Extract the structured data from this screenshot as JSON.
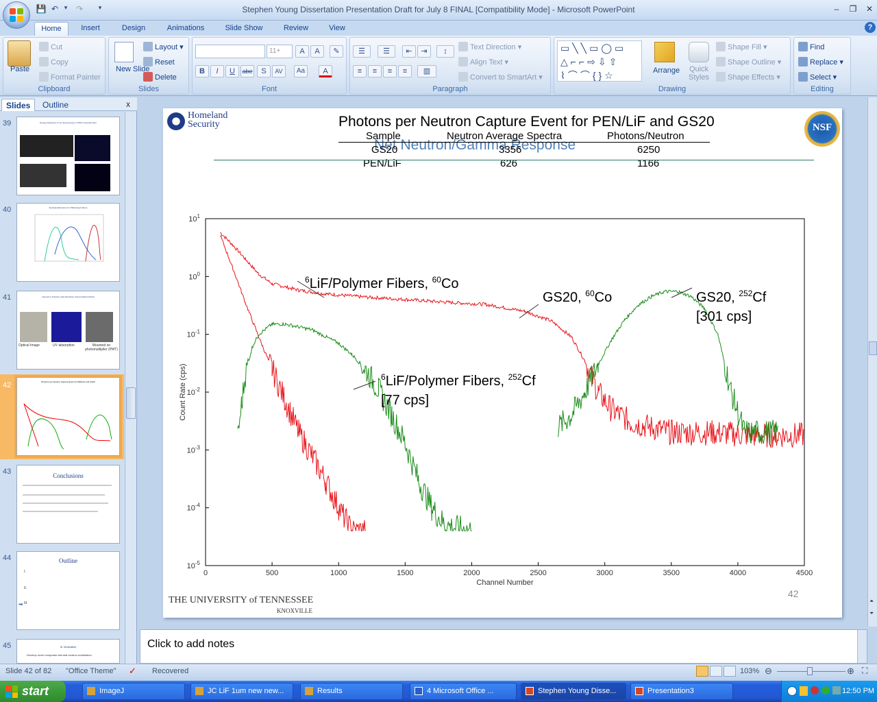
{
  "window": {
    "title": "Stephen Young Dissertation Presentation Draft for July 8 FINAL [Compatibility Mode] - Microsoft PowerPoint"
  },
  "qat": {
    "save_icon": "save-icon",
    "undo_icon": "undo-icon",
    "redo_icon": "redo-icon",
    "customize_icon": "customize-qat-icon"
  },
  "tabs": [
    "Home",
    "Insert",
    "Design",
    "Animations",
    "Slide Show",
    "Review",
    "View"
  ],
  "ribbon": {
    "clipboard": {
      "label": "Clipboard",
      "paste": "Paste",
      "cut": "Cut",
      "copy": "Copy",
      "format_painter": "Format Painter"
    },
    "slides": {
      "label": "Slides",
      "new_slide": "New Slide",
      "layout": "Layout",
      "reset": "Reset",
      "delete": "Delete"
    },
    "font": {
      "label": "Font",
      "size": "11+",
      "bold": "B",
      "italic": "I",
      "underline": "U",
      "strike": "abe",
      "shadow": "S",
      "spacing": "AV",
      "case": "Aa",
      "color": "A"
    },
    "paragraph": {
      "label": "Paragraph",
      "text_direction": "Text Direction",
      "align_text": "Align Text",
      "convert_smartart": "Convert to SmartArt"
    },
    "drawing": {
      "label": "Drawing",
      "arrange": "Arrange",
      "quick_styles": "Quick Styles",
      "shape_fill": "Shape Fill",
      "shape_outline": "Shape Outline",
      "shape_effects": "Shape Effects"
    },
    "editing": {
      "label": "Editing",
      "find": "Find",
      "replace": "Replace",
      "select": "Select"
    }
  },
  "panel": {
    "tab_slides": "Slides",
    "tab_outline": "Outline",
    "close": "x"
  },
  "thumbnails": [
    {
      "num": "39",
      "title": "Energy Dispersive X-ray Spectroscopy of PEN composite fiber"
    },
    {
      "num": "40",
      "title": "Excitation/Emission for PEN-based Fibers"
    },
    {
      "num": "41",
      "title": "Attempt to Prepare Light Extraction Using Graded Optical",
      "captions": [
        "Optical Image",
        "UV absorption",
        "Mounted on photomultiplier (PMT)"
      ]
    },
    {
      "num": "42",
      "title": "Photons per Neutron Capture Event for PEN/LiF and GS20"
    },
    {
      "num": "43",
      "title": "Conclusions"
    },
    {
      "num": "44",
      "title": "Outline",
      "items": [
        "I.",
        "II.",
        "III."
      ]
    },
    {
      "num": "45",
      "title": "III. Motivation",
      "line": "Develop novel composite thermal neutron scintillators"
    }
  ],
  "slide": {
    "number": "42",
    "title": "Photons per Neutron Capture Event  for PEN/LiF and GS20",
    "subtitle": "Net Neutron/Gamma Response",
    "dhs_logo": [
      "Homeland",
      "Security"
    ],
    "nsf_logo": "NSF",
    "ut_logo": [
      "THE UNIVERSITY of TENNESSEE",
      "KNOXVILLE"
    ],
    "table": {
      "headers": [
        "Sample",
        "Neutron Average Spectra",
        "Photons/Neutron"
      ],
      "rows": [
        [
          "GS20",
          "3356",
          "6250"
        ],
        [
          "PEN/LiF",
          "626",
          "1166"
        ]
      ]
    }
  },
  "chart_data": {
    "type": "line",
    "xlabel": "Channel Number",
    "ylabel": "Count Rate (cps)",
    "xlim": [
      0,
      4500
    ],
    "ylim": [
      1e-05,
      10
    ],
    "yscale": "log",
    "x_ticks": [
      "0",
      "500",
      "1000",
      "1500",
      "2000",
      "2500",
      "3000",
      "3500",
      "4000",
      "4500"
    ],
    "y_ticks": [
      "10^1",
      "10^0",
      "10^-1",
      "10^-2",
      "10^-3",
      "10^-4",
      "10^-5"
    ],
    "series": [
      {
        "name": "GS20, 60Co",
        "color": "#e8141b",
        "x": [
          110,
          200,
          300,
          400,
          500,
          700,
          900,
          1200,
          1500,
          1800,
          2100,
          2400,
          2600,
          2750,
          2850,
          2950,
          3050,
          3200,
          3500,
          3800,
          4100,
          4500
        ],
        "y": [
          5.8,
          3.6,
          2.0,
          1.1,
          0.75,
          0.58,
          0.5,
          0.44,
          0.4,
          0.36,
          0.33,
          0.25,
          0.17,
          0.09,
          0.035,
          0.01,
          0.005,
          0.003,
          0.002,
          0.002,
          0.0018,
          0.0018
        ]
      },
      {
        "name": "6LiF/Polymer Fibers, 60Co",
        "color": "#e8141b",
        "x": [
          110,
          200,
          300,
          400,
          500,
          600,
          700,
          800,
          900,
          1000,
          1100,
          1200
        ],
        "y": [
          5.2,
          1.5,
          0.35,
          0.09,
          0.025,
          0.007,
          0.002,
          0.0008,
          0.0003,
          0.0001,
          4e-05,
          4e-05
        ]
      },
      {
        "name": "6LiF/Polymer Fibers, 252Cf",
        "color": "#1a8c1a",
        "x": [
          240,
          270,
          300,
          350,
          400,
          500,
          600,
          800,
          1000,
          1100,
          1200,
          1300,
          1400,
          1500,
          1600,
          1700,
          1800,
          2000
        ],
        "y": [
          0.0015,
          0.006,
          0.02,
          0.06,
          0.1,
          0.15,
          0.15,
          0.12,
          0.07,
          0.045,
          0.025,
          0.011,
          0.004,
          0.0013,
          0.0003,
          0.0001,
          5e-05,
          4e-05
        ]
      },
      {
        "name": "GS20, 252Cf",
        "color": "#1a8c1a",
        "x": [
          2650,
          2750,
          2850,
          2950,
          3050,
          3150,
          3250,
          3350,
          3450,
          3550,
          3650,
          3750,
          3850,
          3950,
          4050,
          4150,
          4300
        ],
        "y": [
          0.0025,
          0.004,
          0.01,
          0.03,
          0.08,
          0.18,
          0.32,
          0.45,
          0.55,
          0.55,
          0.45,
          0.28,
          0.1,
          0.01,
          0.002,
          0.002,
          0.002
        ]
      }
    ],
    "annotations": [
      {
        "text": "LiF/Polymer Fibers,",
        "sup1": "6",
        "sup2": "60",
        "tail": "Co"
      },
      {
        "text": "GS20,",
        "sup2": "60",
        "tail": "Co"
      },
      {
        "text": "GS20,",
        "sup2": "252",
        "tail": "Cf",
        "line2": "[301 cps]"
      },
      {
        "text": "LiF/Polymer Fibers,",
        "sup1": "6",
        "sup2": "252",
        "tail": "Cf",
        "line2": "[77 cps]"
      }
    ]
  },
  "notes": {
    "placeholder": "Click to add notes"
  },
  "status": {
    "slide": "Slide 42 of 82",
    "theme": "\"Office Theme\"",
    "recovered": "Recovered",
    "zoom": "103%"
  },
  "taskbar": {
    "start": "start",
    "buttons": [
      "ImageJ",
      "JC LiF 1um  new new...",
      "Results",
      "4 Microsoft Office ...",
      "Stephen Young Disse...",
      "Presentation3"
    ],
    "time": "12:50 PM"
  }
}
